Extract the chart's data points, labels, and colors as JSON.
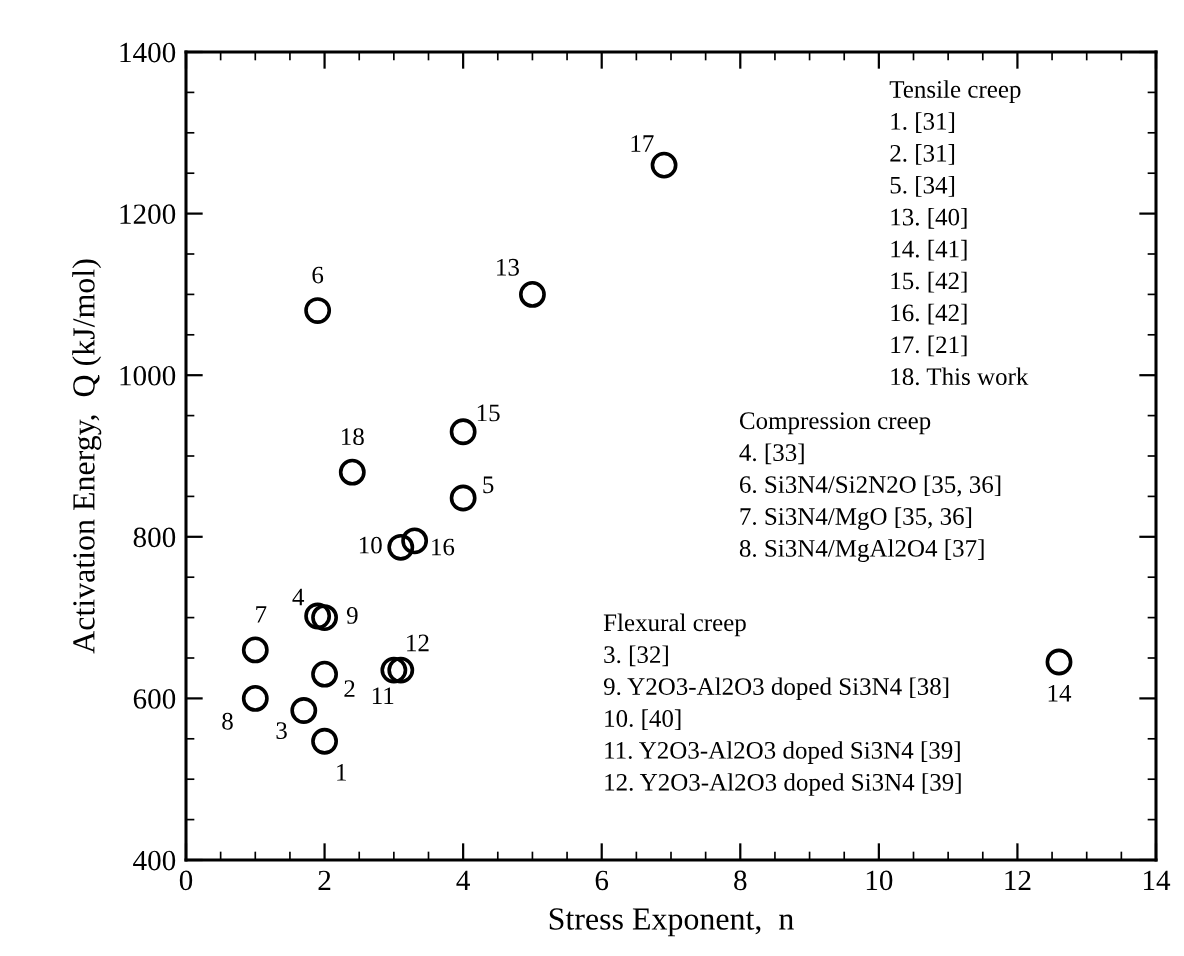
{
  "chart_data": {
    "type": "scatter",
    "xlabel": "Stress Exponent,  n",
    "ylabel": "Activation Energy,  Q (kJ/mol)",
    "x": [
      2.0,
      2.0,
      1.7,
      1.9,
      4.0,
      1.9,
      1.0,
      1.0,
      2.0,
      3.1,
      3.0,
      3.1,
      5.0,
      12.6,
      4.0,
      3.3,
      6.9,
      2.4
    ],
    "series": [
      {
        "color": "#000000",
        "values": [
          547,
          630,
          585,
          702,
          848,
          1080,
          660,
          600,
          700,
          787,
          635,
          635,
          1100,
          645,
          930,
          795,
          1260,
          880
        ]
      }
    ],
    "marker": "circle",
    "grid": false,
    "legend": false,
    "xlim": [
      0,
      14
    ],
    "xticks": [
      0,
      2,
      4,
      6,
      8,
      10,
      12,
      14
    ],
    "ylim": [
      400,
      1400
    ],
    "yticks": [
      400,
      600,
      800,
      1000,
      1200,
      1400
    ],
    "annotations": [
      {
        "text": "1",
        "x": 2.0,
        "y": 547
      },
      {
        "text": "2",
        "x": 2.0,
        "y": 630
      },
      {
        "text": "3",
        "x": 1.7,
        "y": 585
      },
      {
        "text": "4",
        "x": 1.9,
        "y": 702
      },
      {
        "text": "5",
        "x": 4.0,
        "y": 848
      },
      {
        "text": "6",
        "x": 1.9,
        "y": 1080
      },
      {
        "text": "7",
        "x": 1.0,
        "y": 660
      },
      {
        "text": "8",
        "x": 1.0,
        "y": 600
      },
      {
        "text": "9",
        "x": 2.0,
        "y": 700
      },
      {
        "text": "10",
        "x": 3.1,
        "y": 787
      },
      {
        "text": "11",
        "x": 3.0,
        "y": 635
      },
      {
        "text": "12",
        "x": 3.1,
        "y": 635
      },
      {
        "text": "13",
        "x": 5.0,
        "y": 1100
      },
      {
        "text": "14",
        "x": 12.6,
        "y": 645
      },
      {
        "text": "15",
        "x": 4.0,
        "y": 930
      },
      {
        "text": "16",
        "x": 3.3,
        "y": 795
      },
      {
        "text": "17",
        "x": 6.9,
        "y": 1260
      },
      {
        "text": "18",
        "x": 2.4,
        "y": 880
      },
      "Tensile creep",
      "1. [31]",
      "2. [31]",
      "5. [34]",
      "13. [40]",
      "14. [41]",
      "15. [42]",
      "16. [42]",
      "17. [21]",
      "18. This work",
      "Compression creep",
      "4. [33]",
      "6. Si3N4/Si2N2O [35, 36]",
      "7. Si3N4/MgO [35, 36]",
      "8. Si3N4/MgAl2O4 [37]",
      "Flexural creep",
      "3. [32]",
      "9. Y2O3-Al2O3 doped Si3N4 [38]",
      "10. [40]",
      "11. Y2O3-Al2O3 doped Si3N4 [39]",
      "12. Y2O3-Al2O3 doped Si3N4 [39]"
    ]
  }
}
